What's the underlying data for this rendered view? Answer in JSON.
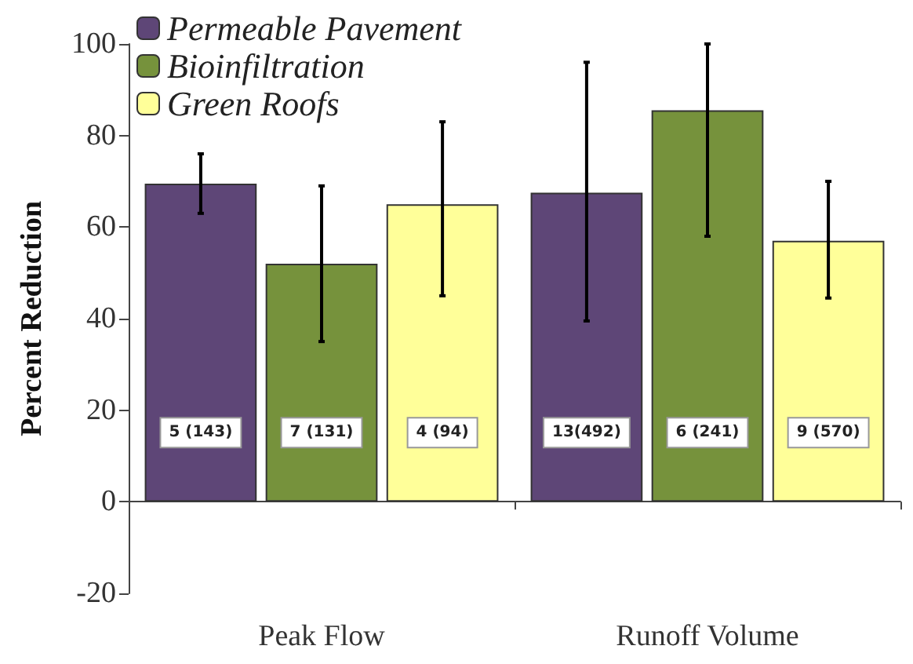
{
  "chart_data": {
    "type": "bar",
    "ylabel": "Percent Reduction",
    "categories": [
      "Peak Flow",
      "Runoff Volume"
    ],
    "series": [
      {
        "name": "Permeable Pavement",
        "color": "#5e4677",
        "values": [
          69.5,
          67.5
        ],
        "errors": [
          [
            63,
            76
          ],
          [
            39.5,
            96
          ]
        ]
      },
      {
        "name": "Bioinfiltration",
        "color": "#76923c",
        "values": [
          52,
          85.5
        ],
        "errors": [
          [
            35,
            69
          ],
          [
            58,
            100
          ]
        ]
      },
      {
        "name": "Green Roofs",
        "color": "#ffff99",
        "values": [
          65,
          57
        ],
        "errors": [
          [
            45,
            83
          ],
          [
            44.5,
            70
          ]
        ]
      }
    ],
    "annotations": [
      "5 (143)",
      "7 (131)",
      "4 (94)",
      "13(492)",
      "6 (241)",
      "9 (570)"
    ],
    "ylim": [
      -20,
      100
    ],
    "yticks": [
      -20,
      0,
      20,
      40,
      60,
      80,
      100
    ],
    "legend": "top left"
  }
}
